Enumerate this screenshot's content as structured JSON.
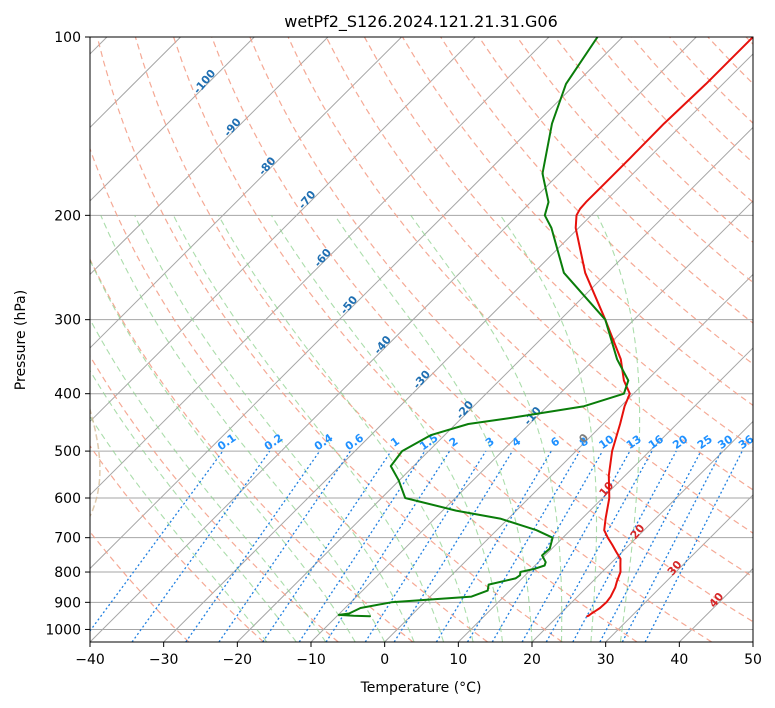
{
  "chart_data": {
    "type": "line",
    "title": "wetPf2_S126.2024.121.21.31.G06",
    "xlabel": "Temperature (°C)",
    "ylabel": "Pressure (hPa)",
    "xlim": [
      -40,
      50
    ],
    "ylim": [
      1050,
      100
    ],
    "y_scale": "log",
    "skew": 35,
    "grid": true,
    "x_ticks": [
      -40,
      -30,
      -20,
      -10,
      0,
      10,
      20,
      30,
      40,
      50
    ],
    "x_tick_labels": [
      "−40",
      "−30",
      "−20",
      "−10",
      "0",
      "10",
      "20",
      "30",
      "40",
      "50"
    ],
    "y_ticks": [
      100,
      200,
      300,
      400,
      500,
      600,
      700,
      800,
      900,
      1000
    ],
    "y_tick_labels": [
      "100",
      "200",
      "300",
      "400",
      "500",
      "600",
      "700",
      "800",
      "900",
      "1000"
    ],
    "series": [
      {
        "color": "#e6110c",
        "pressure": [
          950,
          948,
          940,
          930,
          920,
          900,
          880,
          850,
          830,
          800,
          780,
          760,
          740,
          720,
          700,
          680,
          650,
          600,
          550,
          500,
          450,
          420,
          400,
          380,
          350,
          300,
          250,
          210,
          200,
          195,
          190,
          180,
          160,
          140,
          120,
          100
        ],
        "values": [
          24.0,
          24.1,
          24.2,
          24.4,
          24.6,
          24.7,
          24.5,
          23.9,
          23.3,
          22.5,
          21.6,
          20.7,
          19.2,
          17.7,
          16.1,
          14.6,
          13.2,
          10.9,
          7.8,
          4.9,
          2.3,
          0.5,
          -0.5,
          -3.1,
          -6.4,
          -13.9,
          -23.0,
          -30.4,
          -32.0,
          -32.4,
          -32.5,
          -32.5,
          -32.5,
          -32.6,
          -32.3,
          -32.3
        ]
      },
      {
        "color": "#0a7d0a",
        "pressure": [
          950,
          948,
          945,
          940,
          920,
          900,
          880,
          860,
          840,
          820,
          810,
          800,
          790,
          780,
          770,
          760,
          750,
          730,
          700,
          680,
          650,
          630,
          600,
          560,
          530,
          500,
          470,
          450,
          440,
          420,
          400,
          380,
          350,
          300,
          250,
          210,
          200,
          190,
          170,
          140,
          120,
          100
        ],
        "values": [
          -5.5,
          -7.8,
          -9.9,
          -8.7,
          -7.9,
          -4.5,
          5.6,
          7.0,
          6.3,
          9.1,
          9.3,
          8.9,
          10.4,
          11.3,
          11.0,
          10.3,
          9.6,
          9.7,
          8.6,
          5.4,
          -1.1,
          -8.2,
          -16.8,
          -20.1,
          -23.1,
          -23.6,
          -21.9,
          -18.3,
          -13.6,
          -5.0,
          -1.3,
          -2.5,
          -6.9,
          -13.9,
          -25.9,
          -33.7,
          -36.3,
          -37.6,
          -42.3,
          -47.8,
          -51.3,
          -53.4
        ]
      }
    ],
    "annotations": {
      "dry_adiabats": [
        "-100",
        "-90",
        "-80",
        "-70",
        "-60",
        "-50",
        "-40",
        "-30",
        "-20",
        "-10",
        "0",
        "10",
        "20",
        "30",
        "40"
      ],
      "mixing_ratios": [
        "0.1",
        "0.2",
        "0.4",
        "0.6",
        "1",
        "1.5",
        "2",
        "3",
        "4",
        "6",
        "8",
        "10",
        "13",
        "16",
        "20",
        "25",
        "30",
        "36"
      ],
      "colors": {
        "isotherm": "#a6a6a6",
        "isobar": "#a6a6a6",
        "dry_adiabat": "#f4a08a",
        "moist_adiabat": "#8fd18f",
        "mixing_ratio": "#1f7fe0",
        "theta_e": "#d2b48c",
        "dry_label_cold": "#1f6fb2",
        "dry_label_warm": "#d62728",
        "dry_label_zero": "#7f7f7f",
        "mix_label": "#1e90ff"
      }
    }
  }
}
